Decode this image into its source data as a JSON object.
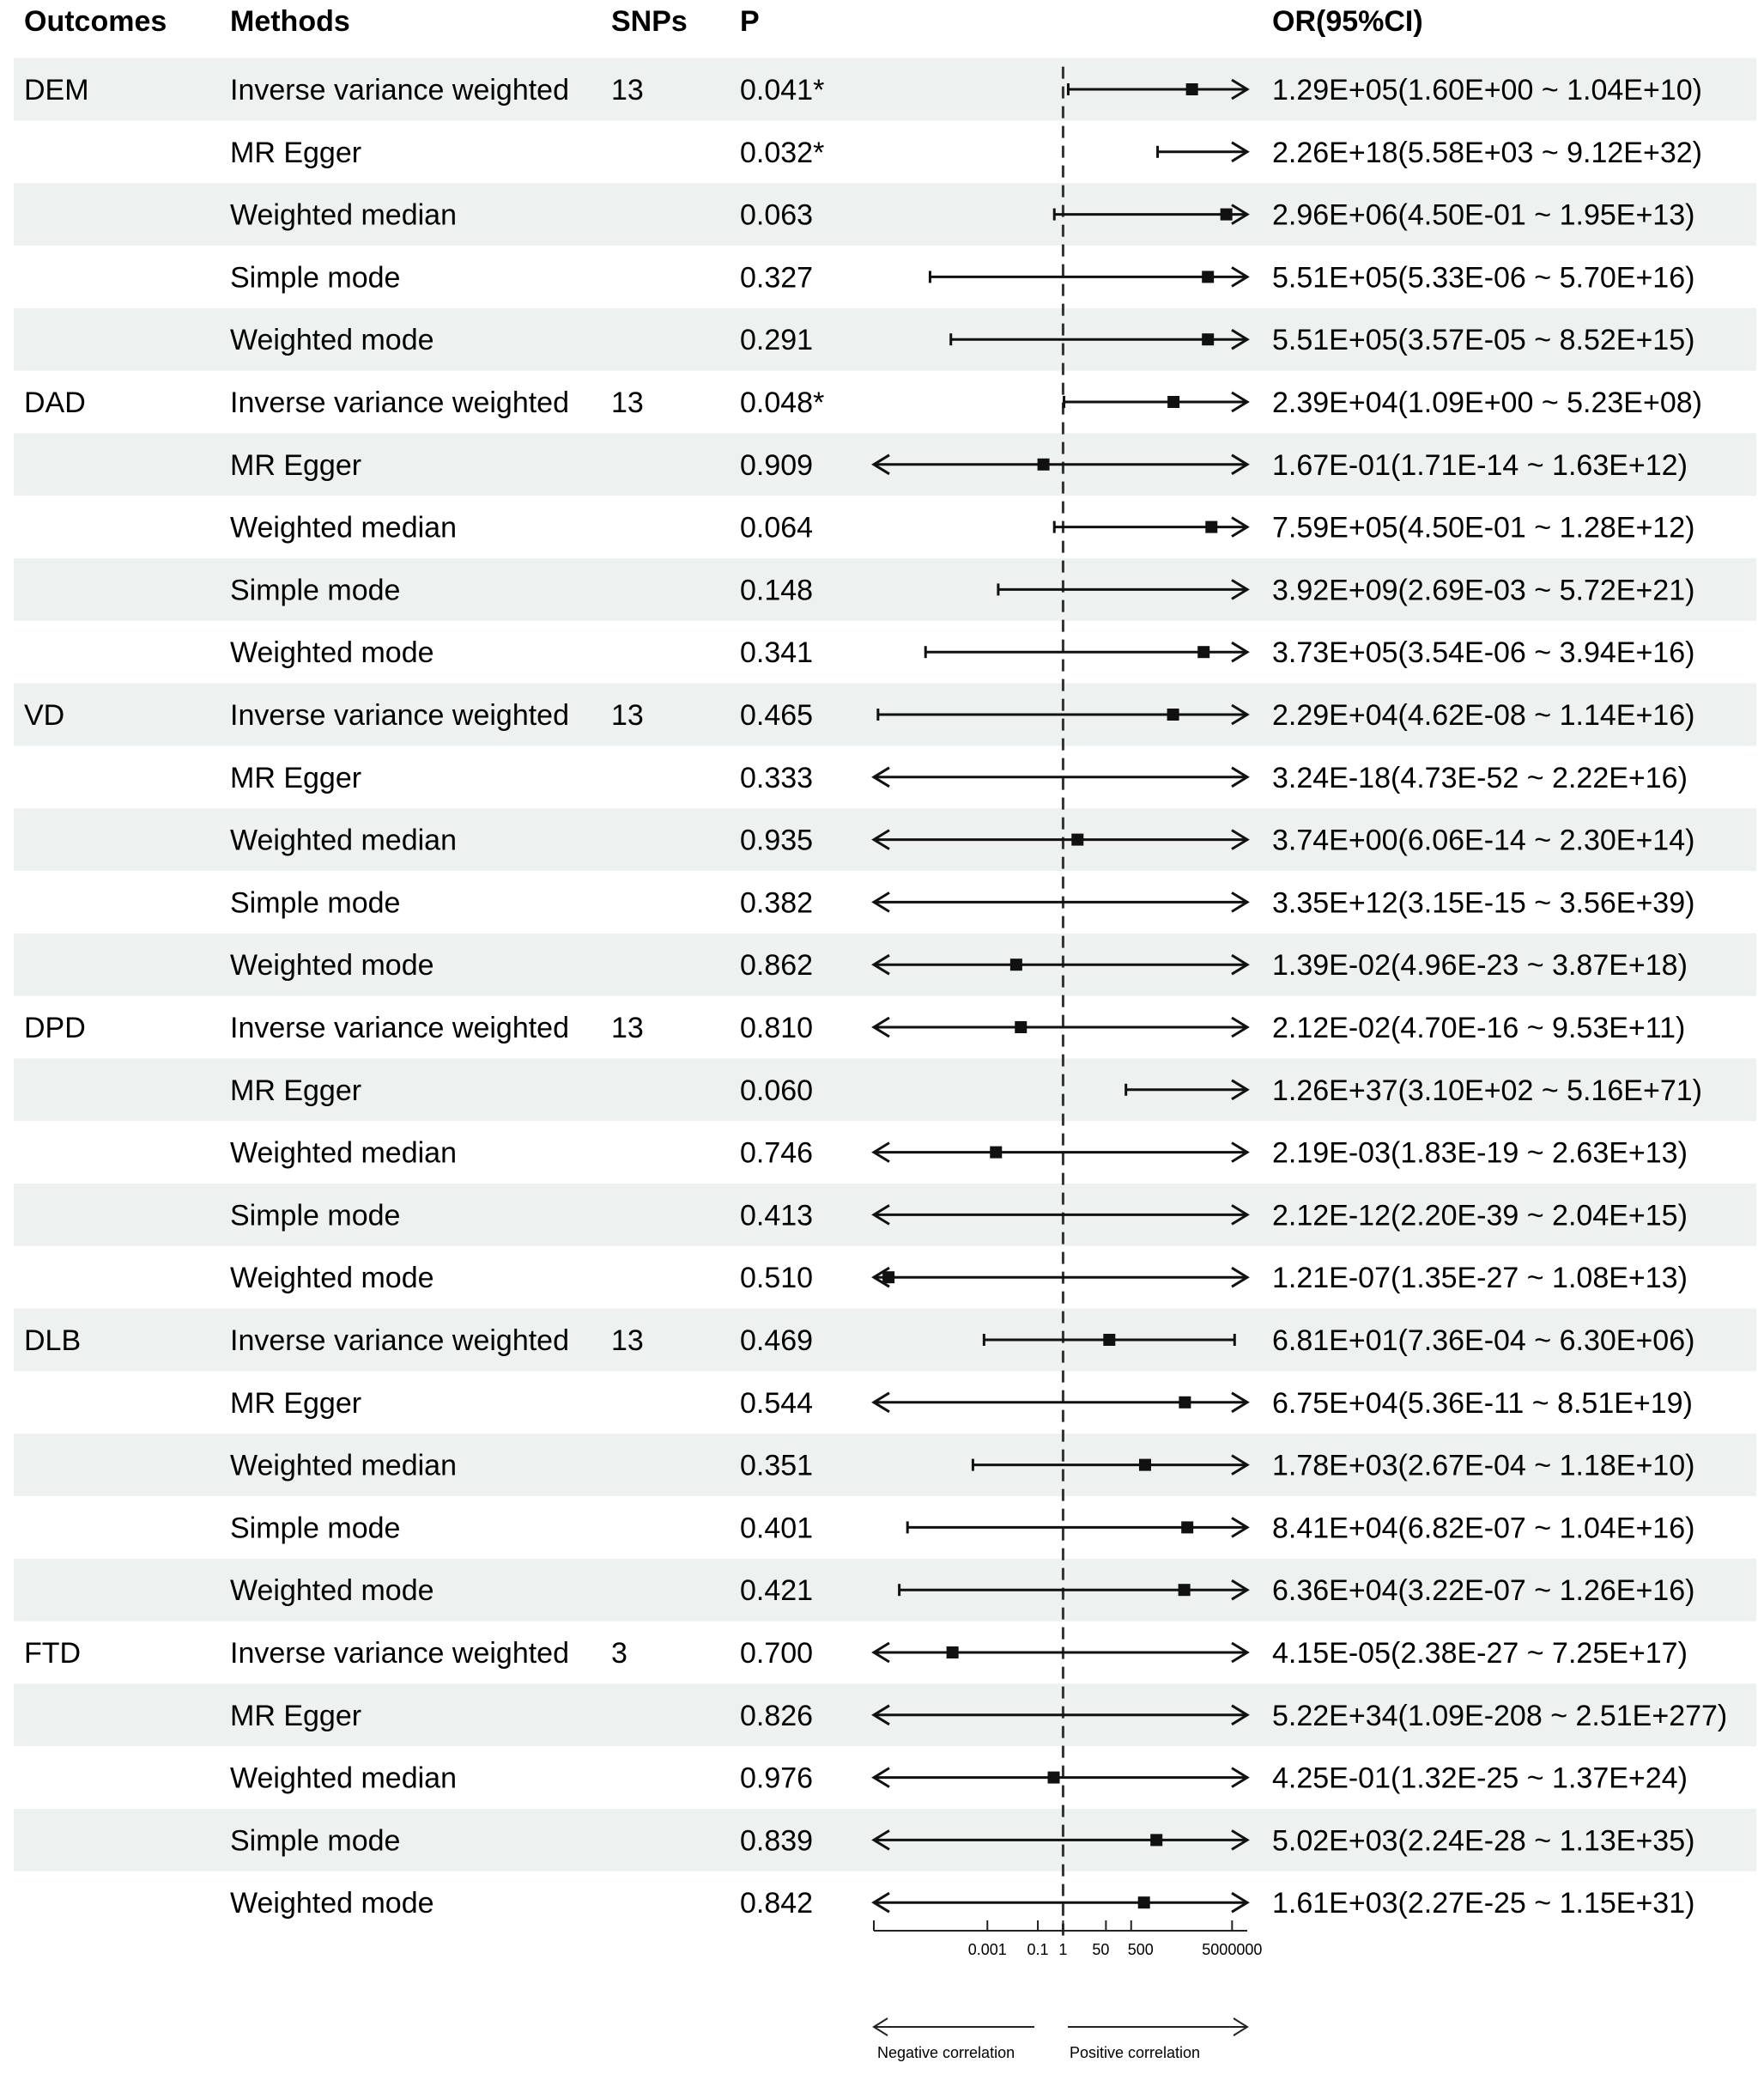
{
  "chart_data": {
    "type": "forest",
    "columns": {
      "outcomes": "Outcomes",
      "methods": "Methods",
      "snps": "SNPs",
      "p": "P",
      "or": "OR(95%CI)"
    },
    "x_scale": "log",
    "reference_line": 1,
    "x_ticks": [
      {
        "value": 0.001,
        "label": "0.001"
      },
      {
        "value": 0.1,
        "label": "0.1"
      },
      {
        "value": 1,
        "label": "1"
      },
      {
        "value": 50,
        "label": "50"
      },
      {
        "value": 500,
        "label": "500"
      },
      {
        "value": 5000000,
        "label": "5000000"
      }
    ],
    "direction_labels": {
      "negative": "Negative correlation",
      "positive": "Positive correlation"
    },
    "rows": [
      {
        "outcome": "DEM",
        "method": "Inverse variance weighted",
        "snps": "13",
        "p": "0.041*",
        "or": 129000.0,
        "lower": 1.6,
        "upper": 10400000000.0,
        "or_text": "1.29E+05(1.60E+00 ~ 1.04E+10)"
      },
      {
        "outcome": "",
        "method": "MR Egger",
        "snps": "",
        "p": "0.032*",
        "or": 2.26e+18,
        "lower": 5580.0,
        "upper": 9.12e+32,
        "or_text": "2.26E+18(5.58E+03 ~ 9.12E+32)"
      },
      {
        "outcome": "",
        "method": "Weighted median",
        "snps": "",
        "p": "0.063",
        "or": 2960000.0,
        "lower": 0.45,
        "upper": 19500000000000.0,
        "or_text": "2.96E+06(4.50E-01 ~ 1.95E+13)"
      },
      {
        "outcome": "",
        "method": "Simple mode",
        "snps": "",
        "p": "0.327",
        "or": 551000.0,
        "lower": 5.33e-06,
        "upper": 5.7e+16,
        "or_text": "5.51E+05(5.33E-06 ~ 5.70E+16)"
      },
      {
        "outcome": "",
        "method": "Weighted mode",
        "snps": "",
        "p": "0.291",
        "or": 551000.0,
        "lower": 3.57e-05,
        "upper": 8520000000000000.0,
        "or_text": "5.51E+05(3.57E-05 ~ 8.52E+15)"
      },
      {
        "outcome": "DAD",
        "method": "Inverse variance weighted",
        "snps": "13",
        "p": "0.048*",
        "or": 23900.0,
        "lower": 1.09,
        "upper": 523000000.0,
        "or_text": "2.39E+04(1.09E+00 ~ 5.23E+08)"
      },
      {
        "outcome": "",
        "method": "MR Egger",
        "snps": "",
        "p": "0.909",
        "or": 0.167,
        "lower": 1.71e-14,
        "upper": 1630000000000.0,
        "or_text": "1.67E-01(1.71E-14 ~ 1.63E+12)"
      },
      {
        "outcome": "",
        "method": "Weighted median",
        "snps": "",
        "p": "0.064",
        "or": 759000.0,
        "lower": 0.45,
        "upper": 1280000000000.0,
        "or_text": "7.59E+05(4.50E-01 ~ 1.28E+12)"
      },
      {
        "outcome": "",
        "method": "Simple mode",
        "snps": "",
        "p": "0.148",
        "or": 3920000000.0,
        "lower": 0.00269,
        "upper": 5.72e+21,
        "or_text": "3.92E+09(2.69E-03 ~ 5.72E+21)"
      },
      {
        "outcome": "",
        "method": "Weighted mode",
        "snps": "",
        "p": "0.341",
        "or": 373000.0,
        "lower": 3.54e-06,
        "upper": 3.94e+16,
        "or_text": "3.73E+05(3.54E-06 ~ 3.94E+16)"
      },
      {
        "outcome": "VD",
        "method": "Inverse variance weighted",
        "snps": "13",
        "p": "0.465",
        "or": 22900.0,
        "lower": 4.62e-08,
        "upper": 1.14e+16,
        "or_text": "2.29E+04(4.62E-08 ~ 1.14E+16)"
      },
      {
        "outcome": "",
        "method": "MR Egger",
        "snps": "",
        "p": "0.333",
        "or": 3.24e-18,
        "lower": 4.73e-52,
        "upper": 2.22e+16,
        "or_text": "3.24E-18(4.73E-52 ~ 2.22E+16)"
      },
      {
        "outcome": "",
        "method": "Weighted median",
        "snps": "",
        "p": "0.935",
        "or": 3.74,
        "lower": 6.06e-14,
        "upper": 230000000000000.0,
        "or_text": "3.74E+00(6.06E-14 ~ 2.30E+14)"
      },
      {
        "outcome": "",
        "method": "Simple mode",
        "snps": "",
        "p": "0.382",
        "or": 3350000000000.0,
        "lower": 3.15e-15,
        "upper": 3.56e+39,
        "or_text": "3.35E+12(3.15E-15 ~ 3.56E+39)"
      },
      {
        "outcome": "",
        "method": "Weighted mode",
        "snps": "",
        "p": "0.862",
        "or": 0.0139,
        "lower": 4.96e-23,
        "upper": 3.87e+18,
        "or_text": "1.39E-02(4.96E-23 ~ 3.87E+18)"
      },
      {
        "outcome": "DPD",
        "method": "Inverse variance weighted",
        "snps": "13",
        "p": "0.810",
        "or": 0.0212,
        "lower": 4.7e-16,
        "upper": 953000000000.0,
        "or_text": "2.12E-02(4.70E-16 ~ 9.53E+11)"
      },
      {
        "outcome": "",
        "method": "MR Egger",
        "snps": "",
        "p": "0.060",
        "or": 1.26e+37,
        "lower": 310.0,
        "upper": 5.16e+71,
        "or_text": "1.26E+37(3.10E+02 ~ 5.16E+71)"
      },
      {
        "outcome": "",
        "method": "Weighted median",
        "snps": "",
        "p": "0.746",
        "or": 0.00219,
        "lower": 1.83e-19,
        "upper": 26300000000000.0,
        "or_text": "2.19E-03(1.83E-19 ~ 2.63E+13)"
      },
      {
        "outcome": "",
        "method": "Simple mode",
        "snps": "",
        "p": "0.413",
        "or": 2.12e-12,
        "lower": 2.2e-39,
        "upper": 2040000000000000.0,
        "or_text": "2.12E-12(2.20E-39 ~ 2.04E+15)"
      },
      {
        "outcome": "",
        "method": "Weighted mode",
        "snps": "",
        "p": "0.510",
        "or": 1.21e-07,
        "lower": 1.35e-27,
        "upper": 10800000000000.0,
        "or_text": "1.21E-07(1.35E-27 ~ 1.08E+13)"
      },
      {
        "outcome": "DLB",
        "method": "Inverse variance weighted",
        "snps": "13",
        "p": "0.469",
        "or": 68.1,
        "lower": 0.000736,
        "upper": 6300000.0,
        "or_text": "6.81E+01(7.36E-04 ~ 6.30E+06)"
      },
      {
        "outcome": "",
        "method": "MR Egger",
        "snps": "",
        "p": "0.544",
        "or": 67500.0,
        "lower": 5.36e-11,
        "upper": 8.51e+19,
        "or_text": "6.75E+04(5.36E-11 ~ 8.51E+19)"
      },
      {
        "outcome": "",
        "method": "Weighted median",
        "snps": "",
        "p": "0.351",
        "or": 1780.0,
        "lower": 0.000267,
        "upper": 11800000000.0,
        "or_text": "1.78E+03(2.67E-04 ~ 1.18E+10)"
      },
      {
        "outcome": "",
        "method": "Simple mode",
        "snps": "",
        "p": "0.401",
        "or": 84100.0,
        "lower": 6.82e-07,
        "upper": 1.04e+16,
        "or_text": "8.41E+04(6.82E-07 ~ 1.04E+16)"
      },
      {
        "outcome": "",
        "method": "Weighted mode",
        "snps": "",
        "p": "0.421",
        "or": 63600.0,
        "lower": 3.22e-07,
        "upper": 1.26e+16,
        "or_text": "6.36E+04(3.22E-07 ~ 1.26E+16)"
      },
      {
        "outcome": "FTD",
        "method": "Inverse variance weighted",
        "snps": "3",
        "p": "0.700",
        "or": 4.15e-05,
        "lower": 2.38e-27,
        "upper": 7.25e+17,
        "or_text": "4.15E-05(2.38E-27 ~ 7.25E+17)"
      },
      {
        "outcome": "",
        "method": "MR Egger",
        "snps": "",
        "p": "0.826",
        "or": 5.22e+34,
        "lower": 1.09e-208,
        "upper": 2.51e+277,
        "or_text": "5.22E+34(1.09E-208 ~ 2.51E+277)"
      },
      {
        "outcome": "",
        "method": "Weighted median",
        "snps": "",
        "p": "0.976",
        "or": 0.425,
        "lower": 1.32e-25,
        "upper": 1.37e+24,
        "or_text": "4.25E-01(1.32E-25 ~ 1.37E+24)"
      },
      {
        "outcome": "",
        "method": "Simple mode",
        "snps": "",
        "p": "0.839",
        "or": 5020.0,
        "lower": 2.24e-28,
        "upper": 1.13e+35,
        "or_text": "5.02E+03(2.24E-28 ~ 1.13E+35)"
      },
      {
        "outcome": "",
        "method": "Weighted mode",
        "snps": "",
        "p": "0.842",
        "or": 1610.0,
        "lower": 2.27e-25,
        "upper": 1.15e+31,
        "or_text": "1.61E+03(2.27E-25 ~ 1.15E+31)"
      }
    ]
  }
}
